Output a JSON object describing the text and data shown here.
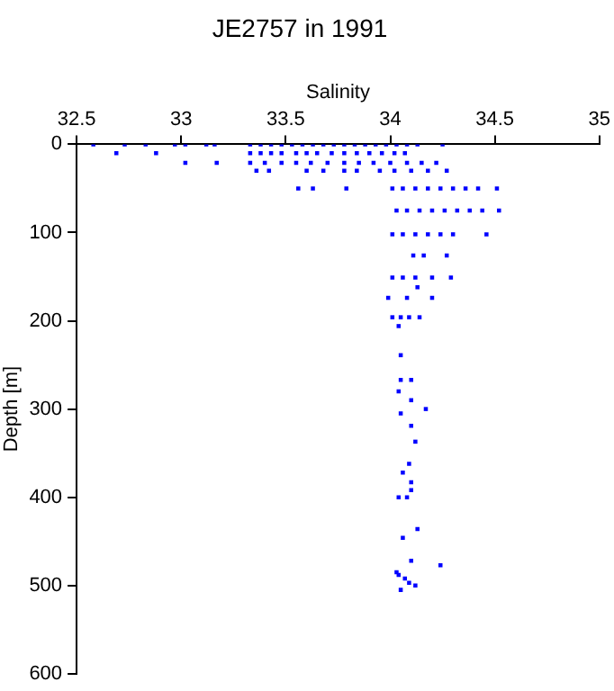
{
  "chart_data": {
    "type": "scatter",
    "title": "JE2757 in 1991",
    "xlabel": "Salinity",
    "ylabel": "Depth [m]",
    "xlim": [
      32.5,
      35
    ],
    "xticks": [
      32.5,
      33,
      33.5,
      34,
      34.5,
      35
    ],
    "ylim": [
      600,
      0
    ],
    "yticks": [
      0,
      100,
      200,
      300,
      400,
      500,
      600
    ],
    "marker": "square",
    "grid": false,
    "legend": false,
    "series": [
      {
        "color": "#0000ff",
        "x": [
          32.58,
          32.73,
          32.83,
          32.97,
          33.02,
          33.12,
          33.16,
          33.33,
          33.38,
          33.43,
          33.48,
          33.53,
          33.58,
          33.63,
          33.68,
          33.73,
          33.78,
          33.83,
          33.88,
          33.93,
          33.98,
          34.03,
          34.08,
          34.13,
          34.25,
          32.69,
          32.88,
          33.33,
          33.38,
          33.43,
          33.48,
          33.55,
          33.6,
          33.65,
          33.72,
          33.78,
          33.84,
          33.9,
          33.96,
          34.02,
          34.07,
          33.02,
          33.17,
          33.33,
          33.4,
          33.48,
          33.55,
          33.62,
          33.7,
          33.78,
          33.85,
          33.92,
          34.0,
          34.08,
          34.15,
          34.22,
          33.36,
          33.42,
          33.6,
          33.68,
          33.78,
          33.84,
          33.95,
          34.02,
          34.1,
          34.18,
          34.27,
          33.56,
          33.63,
          33.79,
          34.01,
          34.06,
          34.12,
          34.18,
          34.24,
          34.3,
          34.36,
          34.42,
          34.51,
          34.03,
          34.08,
          34.14,
          34.2,
          34.26,
          34.32,
          34.38,
          34.44,
          34.52,
          34.01,
          34.06,
          34.12,
          34.18,
          34.24,
          34.3,
          34.46,
          34.11,
          34.16,
          34.27,
          34.01,
          34.06,
          34.12,
          34.2,
          34.29,
          34.13,
          33.99,
          34.08,
          34.2,
          34.01,
          34.05,
          34.09,
          34.14,
          34.04,
          34.05,
          34.05,
          34.1,
          34.04,
          34.1,
          34.17,
          34.05,
          34.1,
          34.12,
          34.09,
          34.06,
          34.1,
          34.1,
          34.04,
          34.08,
          34.13,
          34.06,
          34.1,
          34.24,
          34.03,
          34.07,
          34.12,
          34.05,
          34.09,
          34.04
        ],
        "values": [
          0,
          0,
          0,
          0,
          0,
          0,
          0,
          0,
          0,
          0,
          0,
          0,
          0,
          0,
          0,
          0,
          0,
          0,
          0,
          0,
          0,
          0,
          0,
          0,
          0,
          10,
          10,
          10,
          10,
          10,
          10,
          10,
          10,
          10,
          10,
          10,
          10,
          10,
          10,
          10,
          10,
          21,
          21,
          21,
          21,
          21,
          21,
          21,
          21,
          21,
          21,
          21,
          21,
          21,
          21,
          21,
          30,
          30,
          30,
          30,
          30,
          30,
          30,
          30,
          30,
          30,
          30,
          50,
          50,
          50,
          50,
          50,
          50,
          50,
          50,
          50,
          50,
          50,
          50,
          75,
          75,
          75,
          75,
          75,
          75,
          75,
          75,
          75,
          102,
          102,
          102,
          102,
          102,
          102,
          102,
          126,
          126,
          126,
          151,
          151,
          151,
          151,
          151,
          162,
          174,
          174,
          174,
          196,
          196,
          196,
          196,
          206,
          239,
          267,
          267,
          280,
          290,
          300,
          305,
          319,
          337,
          362,
          372,
          383,
          392,
          400,
          400,
          436,
          446,
          472,
          477,
          485,
          492,
          500,
          505,
          497,
          488
        ]
      }
    ]
  }
}
